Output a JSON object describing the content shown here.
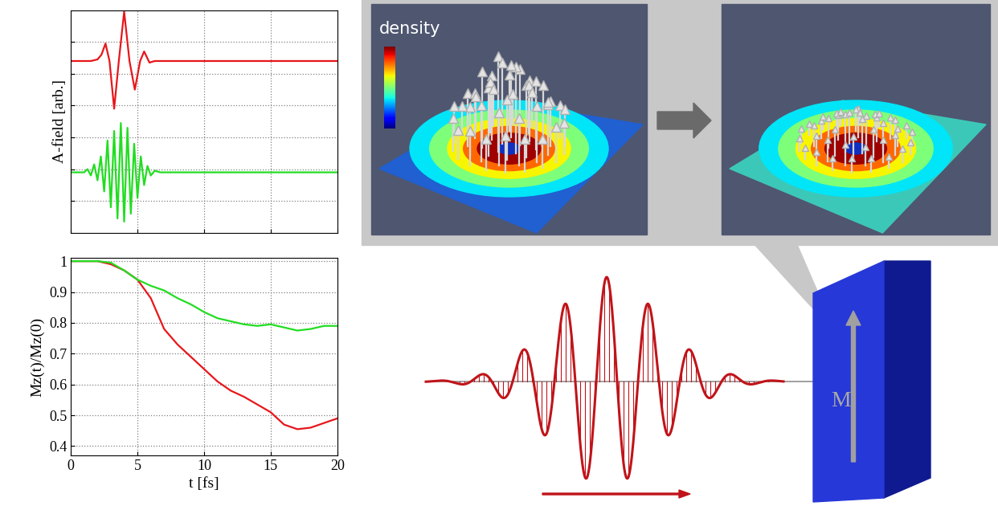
{
  "chart_data": [
    {
      "type": "line",
      "ylabel": "A-field [arb.]",
      "xlim": [
        0,
        20
      ],
      "xticks": [
        0,
        5,
        10,
        15,
        20
      ],
      "ylim": [
        0,
        7
      ],
      "yticks": [
        1,
        2,
        3,
        4,
        5,
        6
      ],
      "grid": true,
      "tick_labels": false,
      "series": [
        {
          "color": "#e8161b",
          "x": [
            0,
            1.5,
            2.0,
            2.3,
            2.6,
            2.9,
            3.25,
            3.6,
            4.0,
            4.4,
            4.8,
            5.2,
            5.5,
            5.9,
            6.3,
            7,
            20
          ],
          "values": [
            5.4,
            5.4,
            5.45,
            5.6,
            5.95,
            5.4,
            3.9,
            5.4,
            6.95,
            5.4,
            4.5,
            5.4,
            5.7,
            5.35,
            5.4,
            5.4,
            5.4
          ]
        },
        {
          "color": "#22dd22",
          "x": [
            0,
            1.0,
            1.25,
            1.5,
            1.75,
            2.0,
            2.25,
            2.5,
            2.75,
            3.0,
            3.25,
            3.5,
            3.75,
            4.0,
            4.25,
            4.5,
            4.75,
            5.0,
            5.25,
            5.5,
            5.75,
            6.0,
            6.3,
            6.7,
            7,
            20
          ],
          "values": [
            1.9,
            1.9,
            2.0,
            1.8,
            2.15,
            1.65,
            2.4,
            1.3,
            2.9,
            0.8,
            3.2,
            0.45,
            3.45,
            0.35,
            3.3,
            0.6,
            2.8,
            1.1,
            2.4,
            1.5,
            2.1,
            1.8,
            1.95,
            1.9,
            1.9,
            1.9
          ]
        }
      ]
    },
    {
      "type": "line",
      "xlabel": "t [fs]",
      "ylabel": "Mz(t)/Mz(0)",
      "xlim": [
        0,
        20
      ],
      "xticks": [
        0,
        5,
        10,
        15,
        20
      ],
      "ylim": [
        0.37,
        1.01
      ],
      "yticks": [
        0.4,
        0.5,
        0.6,
        0.7,
        0.8,
        0.9,
        1
      ],
      "grid": true,
      "series": [
        {
          "color": "#e8161b",
          "x": [
            0,
            2,
            3,
            4,
            5,
            6,
            7,
            8,
            9,
            10,
            11,
            12,
            13,
            14,
            15,
            16,
            17,
            18,
            19,
            20
          ],
          "values": [
            1,
            1,
            0.99,
            0.97,
            0.94,
            0.88,
            0.78,
            0.73,
            0.69,
            0.65,
            0.61,
            0.58,
            0.56,
            0.535,
            0.51,
            0.47,
            0.455,
            0.46,
            0.475,
            0.49
          ]
        },
        {
          "color": "#22dd22",
          "x": [
            0,
            2,
            3,
            4,
            5,
            6,
            7,
            8,
            9,
            10,
            11,
            12,
            13,
            14,
            15,
            16,
            17,
            18,
            19,
            20
          ],
          "values": [
            1,
            1,
            0.995,
            0.97,
            0.94,
            0.92,
            0.905,
            0.88,
            0.86,
            0.835,
            0.815,
            0.805,
            0.795,
            0.79,
            0.795,
            0.785,
            0.775,
            0.78,
            0.79,
            0.79
          ]
        }
      ]
    }
  ],
  "illustration": {
    "density_label": "density",
    "magnetization_label": "M"
  }
}
